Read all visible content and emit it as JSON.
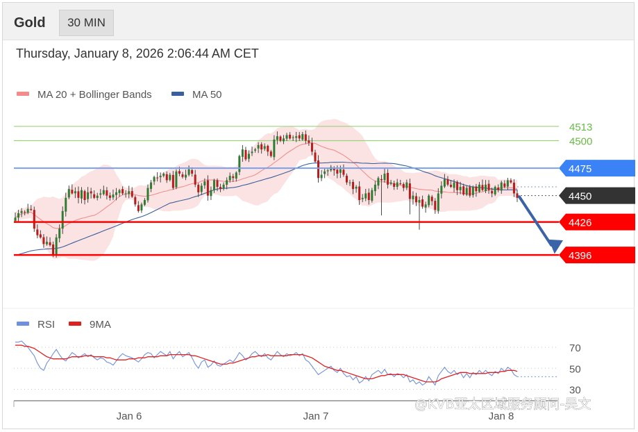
{
  "header": {
    "title": "Gold",
    "timeframe": "30 MIN"
  },
  "timestamp": "Thursday, January 8, 2026 2:06:44 AM CET",
  "watermark": "@KVB亚太区域服务顾问-吴文",
  "colors": {
    "bollinger": "#f28b8b",
    "ma50": "#3a5f9a",
    "rsi": "#6f8fe0",
    "rsi_ma": "#e02020",
    "support": "#ff0000",
    "resistance": "#3b82f6",
    "target": "#66bb44",
    "current": "#333333",
    "arrow": "#3a63a8"
  },
  "chart_data": [
    {
      "type": "candlestick",
      "legend": [
        {
          "name": "MA 20 + Bollinger Bands",
          "color": "#f28b8b"
        },
        {
          "name": "MA 50",
          "color": "#3a5f9a"
        }
      ],
      "ylim": [
        4350,
        4530
      ],
      "x_ticks": [
        "Jan 6",
        "Jan 7",
        "Jan 8"
      ],
      "levels": [
        {
          "value": 4513,
          "label": "4513",
          "kind": "target"
        },
        {
          "value": 4500,
          "label": "4500",
          "kind": "target"
        },
        {
          "value": 4475,
          "label": "4475",
          "kind": "resistance"
        },
        {
          "value": 4450,
          "label": "4450",
          "kind": "current"
        },
        {
          "value": 4426,
          "label": "4426",
          "kind": "support"
        },
        {
          "value": 4396,
          "label": "4396",
          "kind": "support"
        }
      ],
      "close": [
        4430,
        4434,
        4436,
        4435,
        4438,
        4437,
        4420,
        4414,
        4412,
        4406,
        4408,
        4405,
        4396,
        4412,
        4420,
        4436,
        4448,
        4456,
        4452,
        4454,
        4448,
        4455,
        4446,
        4453,
        4452,
        4448,
        4450,
        4452,
        4455,
        4450,
        4448,
        4451,
        4453,
        4455,
        4452,
        4452,
        4454,
        4449,
        4442,
        4436,
        4442,
        4446,
        4457,
        4462,
        4467,
        4466,
        4468,
        4470,
        4464,
        4469,
        4457,
        4472,
        4470,
        4467,
        4469,
        4474,
        4470,
        4460,
        4453,
        4459,
        4463,
        4450,
        4455,
        4464,
        4458,
        4456,
        4460,
        4464,
        4468,
        4466,
        4471,
        4486,
        4492,
        4483,
        4488,
        4490,
        4492,
        4496,
        4492,
        4495,
        4490,
        4486,
        4501,
        4504,
        4500,
        4502,
        4505,
        4502,
        4503,
        4504,
        4502,
        4506,
        4500,
        4498,
        4490,
        4481,
        4466,
        4469,
        4472,
        4473,
        4476,
        4473,
        4470,
        4474,
        4469,
        4462,
        4462,
        4456,
        4458,
        4446,
        4448,
        4452,
        4446,
        4455,
        4460,
        4466,
        4464,
        4470,
        4460,
        4462,
        4458,
        4462,
        4461,
        4457,
        4462,
        4447,
        4450,
        4444,
        4446,
        4440,
        4442,
        4450,
        4445,
        4437,
        4452,
        4459,
        4465,
        4460,
        4458,
        4462,
        4455,
        4458,
        4451,
        4457,
        4450,
        4458,
        4454,
        4460,
        4455,
        4460,
        4455,
        4452,
        4458,
        4455,
        4462,
        4458,
        4464,
        4462,
        4452,
        4448
      ]
    },
    {
      "type": "line",
      "legend": [
        {
          "name": "RSI",
          "color": "#6f8fe0"
        },
        {
          "name": "9MA",
          "color": "#e02020"
        }
      ],
      "ylim": [
        25,
        80
      ],
      "y_ticks": [
        70,
        50,
        30
      ],
      "series": [
        {
          "name": "RSI",
          "values": [
            75,
            75,
            76,
            73,
            70,
            66,
            62,
            55,
            50,
            48,
            55,
            59,
            64,
            68,
            63,
            59,
            57,
            61,
            65,
            63,
            60,
            62,
            64,
            61,
            63,
            60,
            58,
            60,
            59,
            56,
            55,
            53,
            57,
            61,
            64,
            62,
            61,
            60,
            58,
            56,
            59,
            63,
            65,
            64,
            60,
            63,
            66,
            64,
            62,
            66,
            59,
            63,
            66,
            61,
            63,
            65,
            60,
            54,
            50,
            56,
            58,
            51,
            53,
            57,
            53,
            52,
            54,
            56,
            58,
            56,
            60,
            65,
            62,
            58,
            60,
            64,
            66,
            63,
            61,
            64,
            60,
            58,
            62,
            66,
            63,
            61,
            64,
            62,
            63,
            65,
            62,
            64,
            58,
            56,
            52,
            48,
            44,
            46,
            48,
            50,
            52,
            48,
            46,
            50,
            45,
            42,
            43,
            39,
            42,
            36,
            38,
            42,
            38,
            44,
            46,
            48,
            45,
            49,
            44,
            45,
            42,
            45,
            44,
            41,
            44,
            37,
            39,
            35,
            37,
            34,
            36,
            42,
            38,
            34,
            43,
            47,
            51,
            47,
            45,
            48,
            44,
            46,
            41,
            45,
            41,
            46,
            44,
            48,
            45,
            48,
            45,
            43,
            47,
            45,
            50,
            47,
            51,
            49,
            44,
            42
          ]
        },
        {
          "name": "9MA",
          "values": [
            72,
            72,
            72,
            71,
            71,
            70,
            69,
            67,
            65,
            63,
            61,
            60,
            59,
            59,
            59,
            59,
            59,
            60,
            61,
            61,
            61,
            61,
            62,
            62,
            62,
            61,
            61,
            61,
            61,
            60,
            60,
            59,
            58,
            58,
            58,
            58,
            59,
            59,
            59,
            60,
            60,
            60,
            61,
            61,
            61,
            61,
            62,
            62,
            62,
            63,
            63,
            63,
            63,
            63,
            63,
            63,
            62,
            62,
            61,
            60,
            59,
            58,
            57,
            56,
            55,
            54,
            54,
            54,
            55,
            55,
            56,
            57,
            58,
            59,
            60,
            61,
            61,
            62,
            62,
            62,
            63,
            62,
            62,
            62,
            62,
            62,
            62,
            63,
            63,
            63,
            63,
            63,
            62,
            61,
            60,
            58,
            56,
            54,
            52,
            51,
            50,
            49,
            48,
            48,
            47,
            46,
            45,
            44,
            43,
            42,
            41,
            40,
            40,
            40,
            41,
            42,
            43,
            43,
            44,
            44,
            44,
            44,
            44,
            44,
            43,
            42,
            41,
            40,
            39,
            38,
            37,
            37,
            37,
            37,
            38,
            40,
            41,
            42,
            43,
            44,
            45,
            46,
            46,
            46,
            45,
            45,
            45,
            45,
            45,
            45,
            46,
            46,
            46,
            46,
            47,
            47,
            48,
            48,
            48,
            47
          ]
        }
      ]
    }
  ]
}
